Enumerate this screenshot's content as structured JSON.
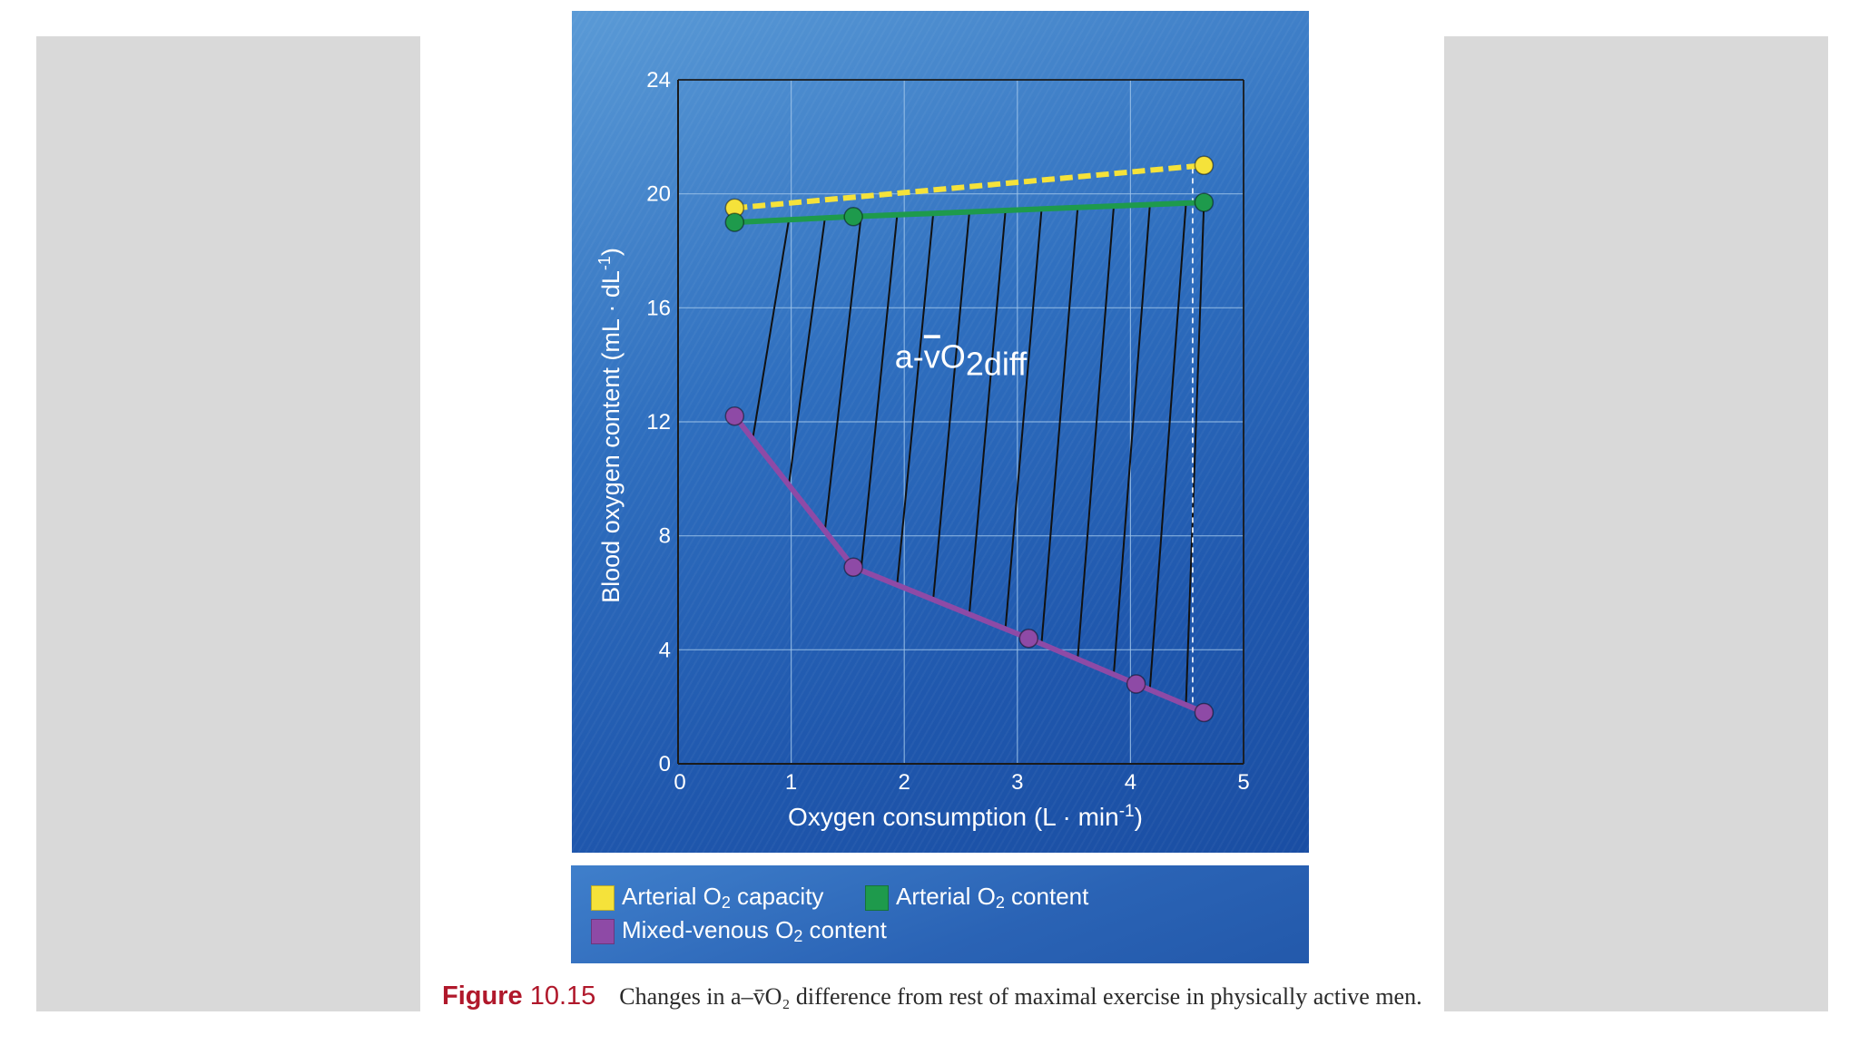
{
  "chart_data": {
    "type": "line",
    "title": "",
    "xlabel_main": "Oxygen consumption (L · min",
    "xlabel_sup": "-1",
    "xlabel_end": ")",
    "ylabel_main": "Blood oxygen content (mL · dL",
    "ylabel_sup": "-1",
    "ylabel_end": ")",
    "xlim": [
      0,
      5
    ],
    "ylim": [
      0,
      24
    ],
    "x_ticks": [
      "0",
      "1",
      "2",
      "3",
      "4",
      "5"
    ],
    "y_ticks": [
      "0",
      "4",
      "8",
      "12",
      "16",
      "20",
      "24"
    ],
    "grid": true,
    "series": [
      {
        "name": "Arterial O2 capacity",
        "color": "#f5e23a",
        "style": "dashed",
        "x": [
          0.5,
          4.65
        ],
        "y": [
          19.5,
          21.0
        ]
      },
      {
        "name": "Arterial O2 content",
        "color": "#1e9a4c",
        "style": "solid",
        "x": [
          0.5,
          1.55,
          4.65
        ],
        "y": [
          19.0,
          19.2,
          19.7
        ]
      },
      {
        "name": "Mixed-venous O2 content",
        "color": "#8e4aa6",
        "style": "solid",
        "x": [
          0.5,
          1.55,
          3.1,
          4.05,
          4.65
        ],
        "y": [
          12.2,
          6.9,
          4.4,
          2.8,
          1.8
        ]
      }
    ],
    "annotation": {
      "prefix": "a-",
      "v": "v",
      "main": "O",
      "sub": "2diff",
      "x": 2.5,
      "y": 13.9
    },
    "colors": {
      "grid": "#9ec4ea",
      "axis": "#1a1a1a",
      "hatch": "#111111",
      "text": "#ffffff"
    }
  },
  "legend": {
    "items": [
      {
        "pre": "Arterial O",
        "sub": "2",
        "post": " capacity",
        "color": "#f5e23a"
      },
      {
        "pre": "Arterial O",
        "sub": "2",
        "post": " content",
        "color": "#1e9a4c"
      },
      {
        "pre": "Mixed-venous O",
        "sub": "2",
        "post": " content",
        "color": "#8e4aa6"
      }
    ]
  },
  "caption": {
    "label": "Figure",
    "number": "10.15",
    "text": "Changes in a–v̄O₂ difference from rest of maximal exercise in physically active men."
  }
}
